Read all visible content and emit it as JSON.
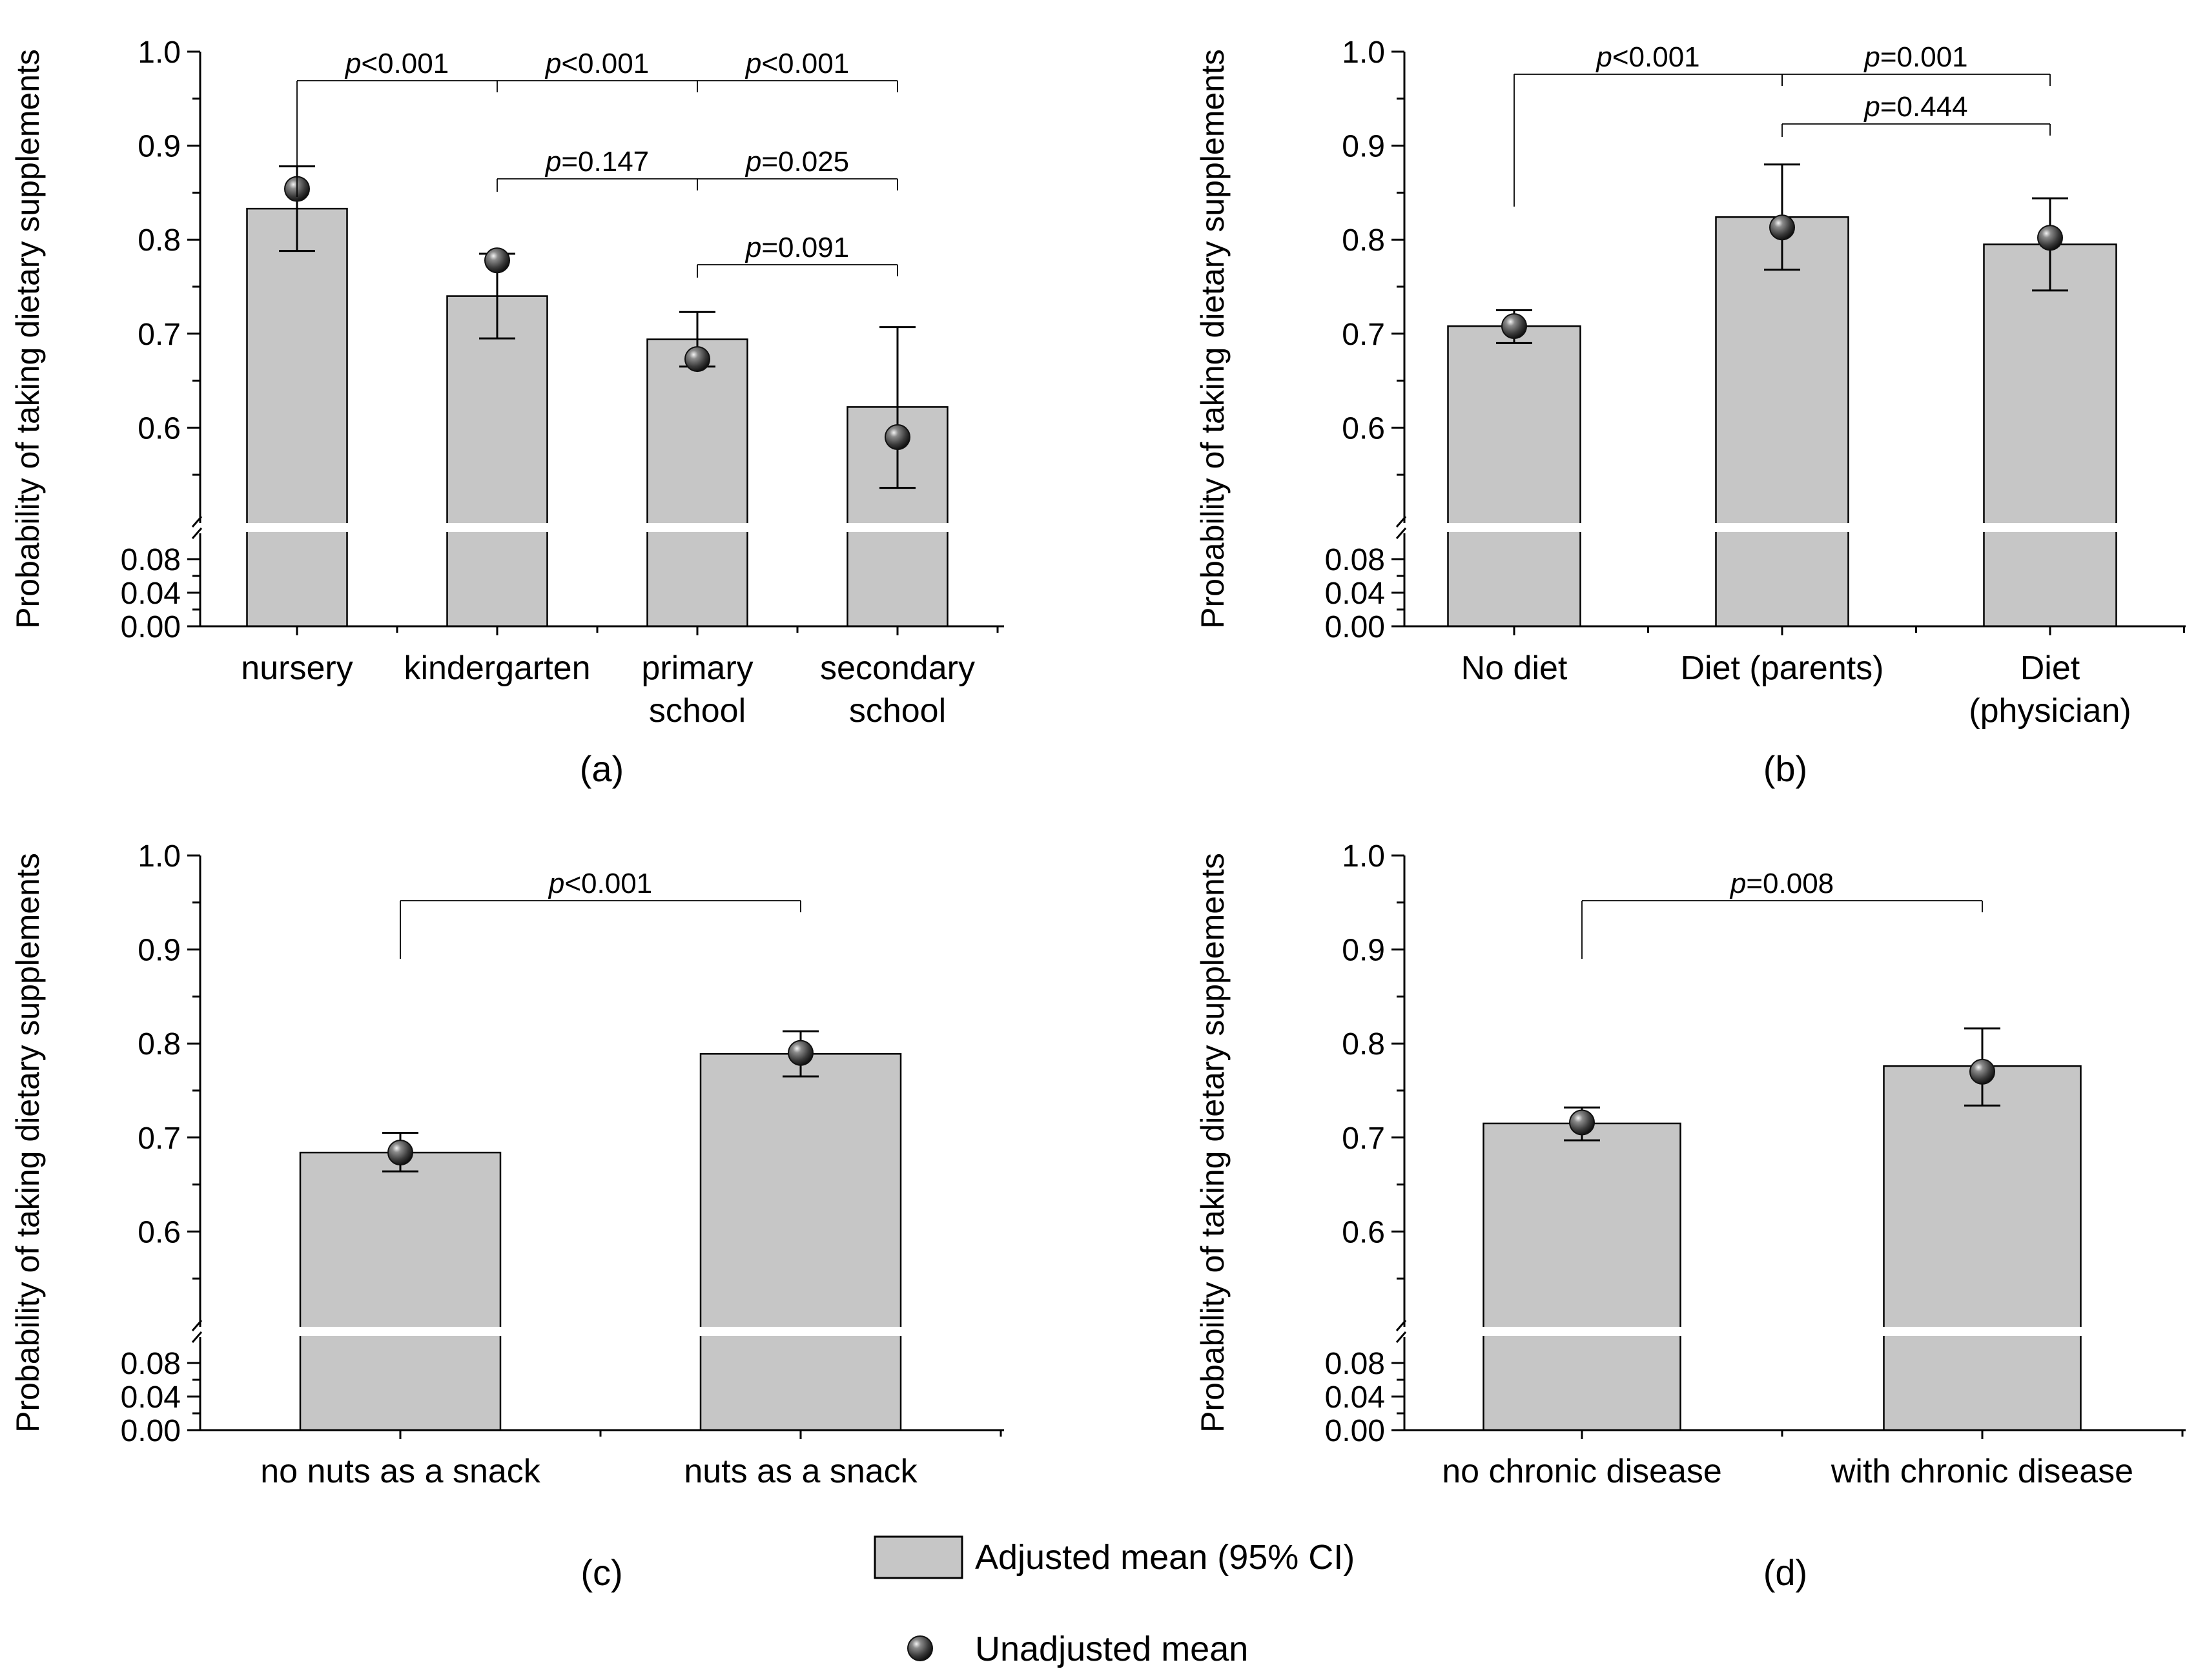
{
  "legend": {
    "bar_label": "Adjusted mean (95% CI)",
    "point_label": "Unadjusted mean"
  },
  "colors": {
    "bar_fill": "#c6c6c6",
    "point": "#3a3a3a"
  },
  "chart_data": [
    {
      "type": "bar",
      "panel_label": "(a)",
      "ylabel": "Probability of taking dietary supplements",
      "broken_axis": true,
      "ylim_lower": [
        0,
        0.1
      ],
      "ylim_upper": [
        0.5,
        1.0
      ],
      "yticks_lower": [
        "0.00",
        "0.04",
        "0.08"
      ],
      "yticks_upper": [
        "0.6",
        "0.7",
        "0.8",
        "0.9",
        "1.0"
      ],
      "categories": [
        [
          "nursery"
        ],
        [
          "kindergarten"
        ],
        [
          "primary",
          "school"
        ],
        [
          "secondary",
          "school"
        ]
      ],
      "adjusted_mean": [
        0.833,
        0.74,
        0.694,
        0.622
      ],
      "ci_lower": [
        0.788,
        0.695,
        0.665,
        0.536
      ],
      "ci_upper": [
        0.878,
        0.785,
        0.723,
        0.707
      ],
      "unadjusted_mean": [
        0.854,
        0.778,
        0.673,
        0.59
      ],
      "comparisons": [
        {
          "from": 0,
          "to": 1,
          "label": "p<0.001"
        },
        {
          "from": 0,
          "to": 2,
          "label": "p<0.001"
        },
        {
          "from": 0,
          "to": 3,
          "label": "p<0.001"
        },
        {
          "from": 1,
          "to": 2,
          "label": "p=0.147"
        },
        {
          "from": 1,
          "to": 3,
          "label": "p=0.025"
        },
        {
          "from": 2,
          "to": 3,
          "label": "p=0.091"
        }
      ]
    },
    {
      "type": "bar",
      "panel_label": "(b)",
      "ylabel": "Probability of taking dietary supplements",
      "broken_axis": true,
      "ylim_lower": [
        0,
        0.1
      ],
      "ylim_upper": [
        0.5,
        1.0
      ],
      "yticks_lower": [
        "0.00",
        "0.04",
        "0.08"
      ],
      "yticks_upper": [
        "0.6",
        "0.7",
        "0.8",
        "0.9",
        "1.0"
      ],
      "categories": [
        [
          "No diet"
        ],
        [
          "Diet (parents)"
        ],
        [
          "Diet",
          "(physician)"
        ]
      ],
      "adjusted_mean": [
        0.708,
        0.824,
        0.795
      ],
      "ci_lower": [
        0.69,
        0.768,
        0.746
      ],
      "ci_upper": [
        0.725,
        0.88,
        0.844
      ],
      "unadjusted_mean": [
        0.708,
        0.813,
        0.802
      ],
      "comparisons": [
        {
          "from": 0,
          "to": 1,
          "label": "p<0.001"
        },
        {
          "from": 0,
          "to": 2,
          "label": "p=0.001"
        },
        {
          "from": 1,
          "to": 2,
          "label": "p=0.444"
        }
      ]
    },
    {
      "type": "bar",
      "panel_label": "(c)",
      "ylabel": "Probability of taking dietary supplements",
      "broken_axis": true,
      "ylim_lower": [
        0,
        0.1
      ],
      "ylim_upper": [
        0.5,
        1.0
      ],
      "yticks_lower": [
        "0.00",
        "0.04",
        "0.08"
      ],
      "yticks_upper": [
        "0.6",
        "0.7",
        "0.8",
        "0.9",
        "1.0"
      ],
      "categories": [
        [
          "no nuts as a snack"
        ],
        [
          "nuts as a snack"
        ]
      ],
      "adjusted_mean": [
        0.684,
        0.789
      ],
      "ci_lower": [
        0.664,
        0.765
      ],
      "ci_upper": [
        0.705,
        0.813
      ],
      "unadjusted_mean": [
        0.684,
        0.79
      ],
      "comparisons": [
        {
          "from": 0,
          "to": 1,
          "label": "p<0.001"
        }
      ]
    },
    {
      "type": "bar",
      "panel_label": "(d)",
      "ylabel": "Probability of taking dietary supplements",
      "broken_axis": true,
      "ylim_lower": [
        0,
        0.1
      ],
      "ylim_upper": [
        0.5,
        1.0
      ],
      "yticks_lower": [
        "0.00",
        "0.04",
        "0.08"
      ],
      "yticks_upper": [
        "0.6",
        "0.7",
        "0.8",
        "0.9",
        "1.0"
      ],
      "categories": [
        [
          "no chronic disease"
        ],
        [
          "with chronic disease"
        ]
      ],
      "adjusted_mean": [
        0.715,
        0.776
      ],
      "ci_lower": [
        0.697,
        0.734
      ],
      "ci_upper": [
        0.732,
        0.816
      ],
      "unadjusted_mean": [
        0.716,
        0.77
      ],
      "comparisons": [
        {
          "from": 0,
          "to": 1,
          "label": "p=0.008"
        }
      ]
    }
  ]
}
